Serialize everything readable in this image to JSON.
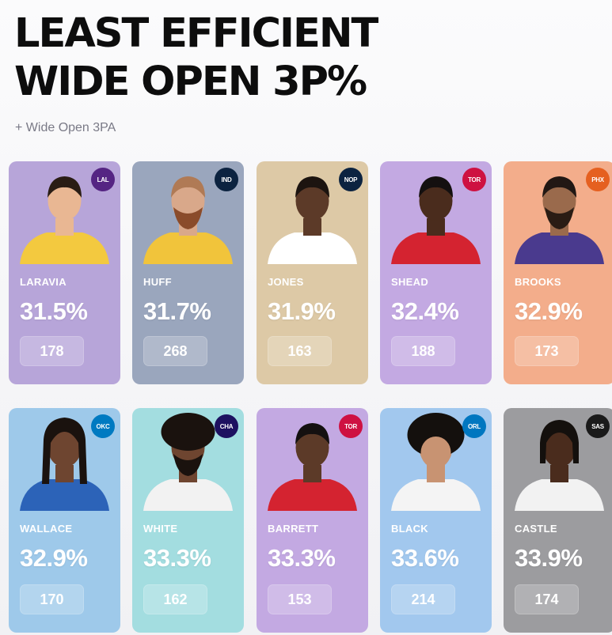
{
  "header": {
    "title_line1": "LEAST EFFICIENT",
    "title_line2": "WIDE OPEN 3P%",
    "subtitle": "+ Wide Open 3PA"
  },
  "players": [
    {
      "name": "LARAVIA",
      "pct": "31.5%",
      "attempts": "178",
      "team_icon": "lakers-logo-icon",
      "bg": "#b7a5d9",
      "jersey": "#f3c93f"
    },
    {
      "name": "HUFF",
      "pct": "31.7%",
      "attempts": "268",
      "team_icon": "pacers-logo-icon",
      "bg": "#9aa6bd",
      "jersey": "#f1c43b"
    },
    {
      "name": "JONES",
      "pct": "31.9%",
      "attempts": "163",
      "team_icon": "pelicans-logo-icon",
      "bg": "#ddc9a6",
      "jersey": "#ffffff"
    },
    {
      "name": "SHEAD",
      "pct": "32.4%",
      "attempts": "188",
      "team_icon": "raptors-logo-icon",
      "bg": "#c3a9e2",
      "jersey": "#d42330"
    },
    {
      "name": "BROOKS",
      "pct": "32.9%",
      "attempts": "173",
      "team_icon": "suns-logo-icon",
      "bg": "#f3ad8b",
      "jersey": "#4a3a8e"
    },
    {
      "name": "WALLACE",
      "pct": "32.9%",
      "attempts": "170",
      "team_icon": "thunder-logo-icon",
      "bg": "#9ec9ea",
      "jersey": "#2c63b8"
    },
    {
      "name": "WHITE",
      "pct": "33.3%",
      "attempts": "162",
      "team_icon": "hornets-logo-icon",
      "bg": "#a3dde0",
      "jersey": "#f2f2f2"
    },
    {
      "name": "BARRETT",
      "pct": "33.3%",
      "attempts": "153",
      "team_icon": "raptors-logo-icon",
      "bg": "#c3a9e2",
      "jersey": "#d42330"
    },
    {
      "name": "BLACK",
      "pct": "33.6%",
      "attempts": "214",
      "team_icon": "magic-logo-icon",
      "bg": "#a2c8ee",
      "jersey": "#f4f4f4"
    },
    {
      "name": "CASTLE",
      "pct": "33.9%",
      "attempts": "174",
      "team_icon": "spurs-logo-icon",
      "bg": "#9c9c9f",
      "jersey": "#f2f2f2"
    }
  ]
}
